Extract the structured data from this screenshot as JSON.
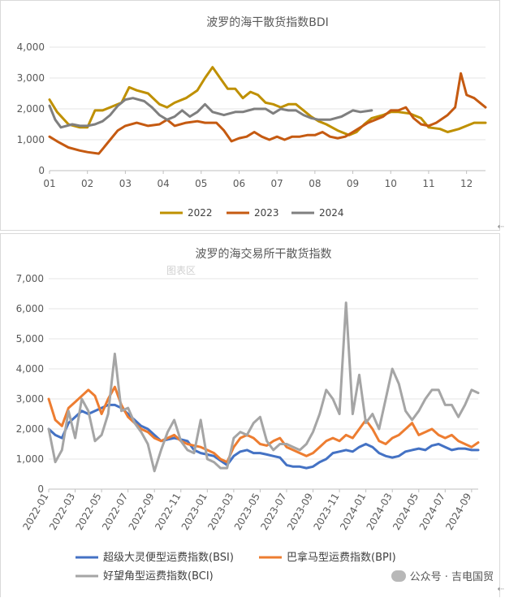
{
  "chart_data": [
    {
      "type": "line",
      "title": "波罗的海干散货指数BDI",
      "xlabel": "",
      "ylabel": "",
      "ylim": [
        0,
        4000
      ],
      "xlim": [
        1,
        12.5
      ],
      "yticks": [
        0,
        1000,
        2000,
        3000,
        4000
      ],
      "ytick_labels": [
        "0",
        "1,000",
        "2,000",
        "3,000",
        "4,000"
      ],
      "xticks": [
        1,
        2,
        3,
        4,
        5,
        6,
        7,
        8,
        9,
        10,
        11,
        12
      ],
      "xtick_labels": [
        "01",
        "02",
        "03",
        "04",
        "05",
        "06",
        "07",
        "08",
        "09",
        "10",
        "11",
        "12"
      ],
      "grid": "horizontal",
      "legend": "bottom",
      "series": [
        {
          "name": "2022",
          "color": "#BF9000",
          "x": [
            1.0,
            1.2,
            1.5,
            1.8,
            2.0,
            2.2,
            2.4,
            2.6,
            2.9,
            3.1,
            3.3,
            3.6,
            3.9,
            4.1,
            4.3,
            4.6,
            4.9,
            5.1,
            5.3,
            5.5,
            5.7,
            5.9,
            6.1,
            6.3,
            6.5,
            6.7,
            6.9,
            7.1,
            7.3,
            7.5,
            7.7,
            7.9,
            8.1,
            8.3,
            8.6,
            8.9,
            9.1,
            9.3,
            9.5,
            9.8,
            10.0,
            10.2,
            10.5,
            10.8,
            11.0,
            11.3,
            11.5,
            11.8,
            12.0,
            12.2,
            12.5
          ],
          "y": [
            2300,
            1900,
            1500,
            1400,
            1400,
            1950,
            1950,
            2050,
            2200,
            2700,
            2600,
            2500,
            2150,
            2050,
            2200,
            2350,
            2600,
            3000,
            3350,
            3000,
            2650,
            2650,
            2350,
            2550,
            2450,
            2200,
            2150,
            2050,
            2150,
            2150,
            1950,
            1750,
            1600,
            1500,
            1300,
            1150,
            1250,
            1500,
            1700,
            1800,
            1900,
            1900,
            1850,
            1700,
            1400,
            1350,
            1250,
            1350,
            1450,
            1550,
            1550
          ]
        },
        {
          "name": "2023",
          "color": "#C55A11",
          "x": [
            1.0,
            1.2,
            1.5,
            1.8,
            2.0,
            2.3,
            2.4,
            2.6,
            2.8,
            3.0,
            3.3,
            3.6,
            3.9,
            4.1,
            4.3,
            4.6,
            4.9,
            5.1,
            5.4,
            5.6,
            5.8,
            6.0,
            6.2,
            6.4,
            6.6,
            6.8,
            7.0,
            7.2,
            7.4,
            7.6,
            7.8,
            8.0,
            8.2,
            8.4,
            8.6,
            8.8,
            9.0,
            9.2,
            9.4,
            9.6,
            9.8,
            10.0,
            10.2,
            10.4,
            10.6,
            10.8,
            11.0,
            11.2,
            11.5,
            11.7,
            11.85,
            12.0,
            12.2,
            12.5
          ],
          "y": [
            1100,
            950,
            750,
            650,
            600,
            550,
            700,
            1000,
            1300,
            1450,
            1550,
            1450,
            1500,
            1650,
            1450,
            1550,
            1600,
            1550,
            1550,
            1300,
            950,
            1050,
            1100,
            1250,
            1100,
            1000,
            1100,
            1000,
            1100,
            1100,
            1150,
            1150,
            1250,
            1100,
            1050,
            1100,
            1250,
            1400,
            1550,
            1650,
            1750,
            1950,
            1950,
            2050,
            1700,
            1500,
            1450,
            1550,
            1800,
            2050,
            3150,
            2450,
            2350,
            2050
          ]
        },
        {
          "name": "2024",
          "color": "#7F7F7F",
          "x": [
            1.0,
            1.15,
            1.3,
            1.6,
            1.8,
            2.0,
            2.2,
            2.4,
            2.6,
            2.8,
            3.0,
            3.2,
            3.5,
            3.7,
            3.9,
            4.1,
            4.3,
            4.5,
            4.7,
            4.9,
            5.1,
            5.3,
            5.6,
            5.9,
            6.1,
            6.4,
            6.7,
            6.9,
            7.1,
            7.3,
            7.5,
            7.7,
            7.9,
            8.1,
            8.4,
            8.7,
            9.0,
            9.2,
            9.5
          ],
          "y": [
            2100,
            1650,
            1400,
            1500,
            1450,
            1450,
            1500,
            1600,
            1800,
            2100,
            2300,
            2350,
            2250,
            2050,
            1800,
            1650,
            1750,
            1950,
            1750,
            1900,
            2150,
            1900,
            1800,
            1900,
            1900,
            2000,
            2000,
            1850,
            2000,
            1950,
            1950,
            1800,
            1700,
            1650,
            1650,
            1750,
            1950,
            1900,
            1950
          ]
        }
      ]
    },
    {
      "type": "line",
      "title": "波罗的海交易所干散货指数",
      "xlabel": "",
      "ylabel": "",
      "ylim": [
        0,
        7000
      ],
      "xlim": [
        0,
        32.5
      ],
      "yticks": [
        0,
        1000,
        2000,
        3000,
        4000,
        5000,
        6000,
        7000
      ],
      "ytick_labels": [
        "0",
        "1,000",
        "2,000",
        "3,000",
        "4,000",
        "5,000",
        "6,000",
        "7,000"
      ],
      "grid": "horizontal",
      "legend": "bottom",
      "x_unit": "months since 2022-01",
      "xtick_positions": [
        0,
        2,
        4,
        6,
        8,
        10,
        12,
        14,
        16,
        18,
        20,
        22,
        24,
        26,
        28,
        30,
        32
      ],
      "xtick_labels": [
        "2022-01",
        "2022-03",
        "2022-05",
        "2022-07",
        "2022-09",
        "2022-11",
        "2023-01",
        "2023-03",
        "2023-05",
        "2023-07",
        "2023-09",
        "2023-11",
        "2024-01",
        "2024-03",
        "2024-05",
        "2024-07",
        "2024-09"
      ],
      "series": [
        {
          "name": "超级大灵便型运费指数(BSI)",
          "color": "#4472C4",
          "x": [
            0,
            0.5,
            1,
            1.5,
            2,
            2.5,
            3,
            3.5,
            4,
            4.5,
            5,
            5.5,
            6,
            6.5,
            7,
            7.5,
            8,
            8.5,
            9,
            9.5,
            10,
            10.5,
            11,
            11.5,
            12,
            12.5,
            13,
            13.5,
            14,
            14.5,
            15,
            15.5,
            16,
            16.5,
            17,
            17.5,
            18,
            18.5,
            19,
            19.5,
            20,
            20.5,
            21,
            21.5,
            22,
            22.5,
            23,
            23.5,
            24,
            24.5,
            25,
            25.5,
            26,
            26.5,
            27,
            27.5,
            28,
            28.5,
            29,
            29.5,
            30,
            30.5,
            31,
            31.5,
            32,
            32.5
          ],
          "y": [
            2000,
            1800,
            1700,
            2200,
            2400,
            2600,
            2500,
            2600,
            2700,
            2800,
            2800,
            2700,
            2500,
            2300,
            2100,
            2000,
            1800,
            1600,
            1650,
            1700,
            1650,
            1600,
            1300,
            1200,
            1150,
            1100,
            950,
            800,
            1100,
            1250,
            1300,
            1200,
            1200,
            1150,
            1100,
            1050,
            800,
            750,
            750,
            700,
            750,
            900,
            1000,
            1200,
            1250,
            1300,
            1250,
            1400,
            1500,
            1400,
            1200,
            1100,
            1050,
            1100,
            1250,
            1300,
            1350,
            1300,
            1450,
            1500,
            1400,
            1300,
            1350,
            1350,
            1300,
            1300
          ]
        },
        {
          "name": "巴拿马型运费指数(BPI)",
          "color": "#ED7D31",
          "x": [
            0,
            0.5,
            1,
            1.5,
            2,
            2.5,
            3,
            3.5,
            4,
            4.5,
            5,
            5.5,
            6,
            6.5,
            7,
            7.5,
            8,
            8.5,
            9,
            9.5,
            10,
            10.5,
            11,
            11.5,
            12,
            12.5,
            13,
            13.5,
            14,
            14.5,
            15,
            15.5,
            16,
            16.5,
            17,
            17.5,
            18,
            18.5,
            19,
            19.5,
            20,
            20.5,
            21,
            21.5,
            22,
            22.5,
            23,
            23.5,
            24,
            24.5,
            25,
            25.5,
            26,
            26.5,
            27,
            27.5,
            28,
            28.5,
            29,
            29.5,
            30,
            30.5,
            31,
            31.5,
            32,
            32.5
          ],
          "y": [
            3000,
            2300,
            2100,
            2700,
            2900,
            3100,
            3300,
            3100,
            2500,
            3000,
            3400,
            2800,
            2400,
            2200,
            2000,
            1900,
            1700,
            1600,
            1700,
            1800,
            1600,
            1500,
            1450,
            1400,
            1300,
            1200,
            1000,
            900,
            1400,
            1700,
            1800,
            1700,
            1500,
            1450,
            1600,
            1700,
            1400,
            1300,
            1200,
            1100,
            1200,
            1400,
            1600,
            1700,
            1600,
            1800,
            1700,
            2000,
            2300,
            2000,
            1600,
            1500,
            1700,
            1800,
            2000,
            2200,
            1800,
            1900,
            2000,
            1800,
            1700,
            1800,
            1600,
            1500,
            1400,
            1550
          ]
        },
        {
          "name": "好望角型运费指数(BCI)",
          "color": "#A5A5A5",
          "x": [
            0,
            0.5,
            1,
            1.5,
            2,
            2.5,
            3,
            3.5,
            4,
            4.5,
            5,
            5.5,
            6,
            6.5,
            7,
            7.5,
            8,
            8.5,
            9,
            9.5,
            10,
            10.5,
            11,
            11.5,
            12,
            12.5,
            13,
            13.5,
            14,
            14.5,
            15,
            15.5,
            16,
            16.5,
            17,
            17.5,
            18,
            18.5,
            19,
            19.5,
            20,
            20.5,
            21,
            21.5,
            22,
            22.5,
            23,
            23.5,
            24,
            24.5,
            25,
            25.5,
            26,
            26.5,
            27,
            27.5,
            28,
            28.5,
            29,
            29.5,
            30,
            30.5,
            31,
            31.5,
            32,
            32.5
          ],
          "y": [
            2000,
            900,
            1300,
            2600,
            1700,
            3000,
            2600,
            1600,
            1800,
            2500,
            4500,
            2600,
            2700,
            2200,
            1900,
            1500,
            600,
            1300,
            1900,
            2300,
            1600,
            1300,
            1200,
            2300,
            1000,
            900,
            700,
            700,
            1700,
            1900,
            1800,
            2200,
            2400,
            1600,
            1300,
            1500,
            1500,
            1400,
            1300,
            1500,
            1900,
            2500,
            3300,
            3000,
            2500,
            6200,
            2500,
            3800,
            2200,
            2500,
            2000,
            3000,
            4000,
            3500,
            2600,
            2300,
            2600,
            3000,
            3300,
            3300,
            2800,
            2800,
            2400,
            2800,
            3300,
            3200
          ]
        }
      ]
    }
  ],
  "watermark": {
    "text": "公众号 · 吉电国贸",
    "icon": "wechat-icon",
    "overlay_text": "图表区"
  }
}
